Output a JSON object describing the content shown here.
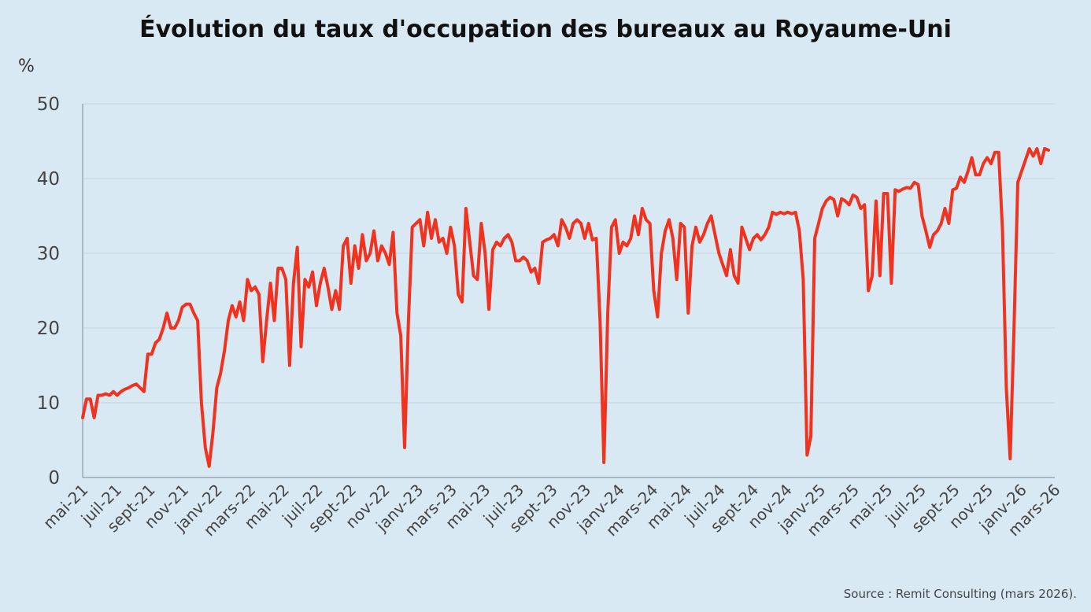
{
  "title": "Évolution du taux d'occupation des bureaux au Royaume-Uni",
  "unit": "%",
  "source": "Source : Remit Consulting (mars 2026).",
  "colors": {
    "line": "#f0321e",
    "grid": "#c6d4df",
    "axis": "#8a9aa8",
    "background": "#d9e9f4"
  },
  "chart_data": {
    "type": "line",
    "title": "Évolution du taux d'occupation des bureaux au Royaume-Uni",
    "ylabel": "%",
    "xlabel": "",
    "ylim": [
      0,
      50
    ],
    "yticks": [
      0,
      10,
      20,
      30,
      40,
      50
    ],
    "grid": "horizontal",
    "x_start": "mai-21",
    "x_end": "mars-26",
    "x_tick_labels": [
      "mai-21",
      "juil-21",
      "sept-21",
      "nov-21",
      "janv-22",
      "mars-22",
      "mai-22",
      "juil-22",
      "sept-22",
      "nov-22",
      "janv-23",
      "mars-23",
      "mai-23",
      "juil-23",
      "sept-23",
      "nov-23",
      "janv-24",
      "mars-24",
      "mai-24",
      "juil-24",
      "sept-24",
      "nov-24",
      "janv-25",
      "mars-25",
      "mai-25",
      "juil-25",
      "sept-25",
      "nov-25",
      "janv-26",
      "mars-26"
    ],
    "series": [
      {
        "values": [
          8,
          10.5,
          10.5,
          8,
          11,
          11,
          11.2,
          11,
          11.5,
          11,
          11.5,
          11.8,
          12,
          12.3,
          12.5,
          12,
          11.5,
          16.5,
          16.5,
          18,
          18.5,
          20,
          22,
          20,
          20,
          21,
          22.8,
          23.2,
          23.2,
          22,
          21,
          10,
          4,
          1.5,
          6,
          12,
          14,
          17,
          21,
          23,
          21.5,
          23.5,
          21,
          26.5,
          25,
          25.5,
          24.5,
          15.5,
          21,
          26,
          21,
          28,
          28,
          26.5,
          15,
          26,
          30.8,
          17.5,
          26.5,
          25.5,
          27.5,
          23,
          26,
          28,
          25.5,
          22.5,
          25,
          22.5,
          31,
          32,
          26,
          31,
          28,
          32.5,
          29,
          30,
          33,
          29,
          31,
          30,
          28.5,
          32.8,
          22,
          19,
          4,
          21,
          33.5,
          34,
          34.5,
          31,
          35.5,
          32,
          34.5,
          31.5,
          32,
          30,
          33.5,
          31,
          24.5,
          23.5,
          36,
          31.5,
          27,
          26.5,
          34,
          30,
          22.5,
          30.5,
          31.5,
          31,
          32,
          32.5,
          31.5,
          29,
          29,
          29.5,
          29,
          27.5,
          28,
          26,
          31.5,
          31.8,
          32,
          32.5,
          31,
          34.5,
          33.5,
          32,
          34,
          34.5,
          34,
          32,
          34,
          31.8,
          32,
          21,
          2,
          22,
          33.5,
          34.5,
          30,
          31.5,
          31,
          32,
          35,
          32.5,
          36,
          34.5,
          34,
          25,
          21.5,
          30,
          33,
          34.5,
          32,
          26.5,
          34,
          33.5,
          22,
          31,
          33.5,
          31.5,
          32.5,
          34,
          35,
          32.5,
          30,
          28.5,
          27,
          30.5,
          27,
          26,
          33.5,
          32,
          30.5,
          32,
          32.5,
          31.8,
          32.5,
          33.5,
          35.5,
          35.2,
          35.5,
          35.3,
          35.5,
          35.3,
          35.5,
          33,
          26.5,
          3,
          5.5,
          32,
          34,
          36,
          37,
          37.5,
          37.2,
          35,
          37.3,
          37,
          36.5,
          37.8,
          37.5,
          36,
          36.5,
          25,
          27,
          37,
          27,
          38,
          38,
          26,
          38.5,
          38.3,
          38.6,
          38.8,
          38.7,
          39.5,
          39.2,
          35,
          33,
          30.8,
          32.5,
          33,
          34,
          36,
          34,
          38.5,
          38.7,
          40.2,
          39.5,
          41,
          42.8,
          40.5,
          40.5,
          42,
          42.8,
          42,
          43.5,
          43.5,
          33,
          12,
          2.5,
          20,
          39.5,
          41,
          42.5,
          44,
          43,
          44,
          42,
          44,
          43.8
        ]
      }
    ]
  }
}
